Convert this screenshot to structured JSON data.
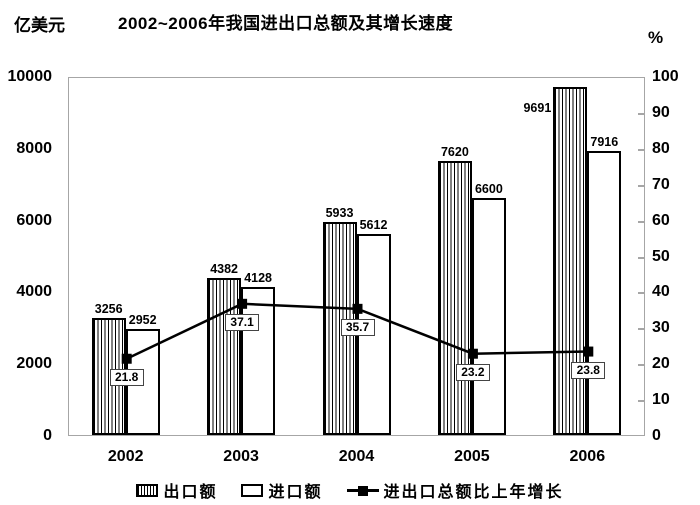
{
  "header": {
    "left_unit": "亿美元",
    "title": "2002~2006年我国进出口总额及其增长速度",
    "right_unit": "%"
  },
  "chart_data": {
    "type": "bar",
    "title": "2002~2006年我国进出口总额及其增长速度",
    "categories": [
      "2002",
      "2003",
      "2004",
      "2005",
      "2006"
    ],
    "series": [
      {
        "name": "出口额",
        "type": "bar",
        "style": "hatched",
        "axis": "left",
        "values": [
          3256,
          4382,
          5933,
          7620,
          9691
        ]
      },
      {
        "name": "进口额",
        "type": "bar",
        "style": "white",
        "axis": "left",
        "values": [
          2952,
          4128,
          5612,
          6600,
          7916
        ]
      },
      {
        "name": "进出口总额比上年增长",
        "type": "line",
        "style": "black-square-marker",
        "axis": "right",
        "values": [
          21.8,
          37.1,
          35.7,
          23.2,
          23.8
        ]
      }
    ],
    "left_axis": {
      "unit": "亿美元",
      "min": 0,
      "max": 10000,
      "step": 2000,
      "ticks": [
        "0",
        "2000",
        "4000",
        "6000",
        "8000",
        "10000"
      ]
    },
    "right_axis": {
      "unit": "%",
      "min": 0,
      "max": 100,
      "step": 10,
      "ticks": [
        "0",
        "10",
        "20",
        "30",
        "40",
        "50",
        "60",
        "70",
        "80",
        "90",
        "100"
      ]
    },
    "grid": false,
    "legend_position": "bottom",
    "data_labels_shown": true
  },
  "legend": {
    "items": [
      {
        "label": "出口额",
        "swatch": "hatched-bar"
      },
      {
        "label": "进口额",
        "swatch": "white-bar"
      },
      {
        "label": "进出口总额比上年增长",
        "swatch": "line-marker"
      }
    ]
  },
  "colors": {
    "background": "#ffffff",
    "text": "#000000",
    "bar_border": "#000000",
    "line": "#000000",
    "plot_border": "#a6a6a6"
  }
}
